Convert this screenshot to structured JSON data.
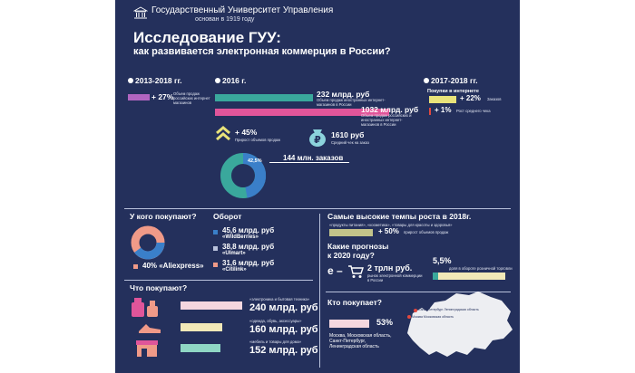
{
  "colors": {
    "bg": "#24305c",
    "pink": "#e0559a",
    "violet": "#b165c0",
    "teal": "#3aa89c",
    "yellow": "#e9e37a",
    "blue": "#3a7fc9",
    "red": "#e2483e",
    "salmon": "#f09a88",
    "olive": "#c2c38a",
    "lightpink": "#f5d7df",
    "lightyellow": "#f1e8b8",
    "aqua": "#8cd3dc",
    "mint": "#8fd6c4"
  },
  "header": {
    "logo_icon": "building-icon",
    "university": "Государственный Университет Управления",
    "founded": "основан в 1919 году"
  },
  "title": {
    "main": "Исследование ГУУ:",
    "sub": "как развивается электронная коммерция в России?"
  },
  "s2013": {
    "heading": "2013-2018 гг.",
    "value": "+ 27%",
    "desc": "Объем продаж российских интернет магазинов"
  },
  "s2016": {
    "heading": "2016 г.",
    "v1": "232 млрд. руб",
    "d1": "Объем продаж иностранных интернет-магазинов в России",
    "v2": "1032 млрд. руб",
    "d2": "Объем продаж российских и иностранных интернет-магазинов в России",
    "growth": "+ 45%",
    "growth_desc": "Прирост объемов продаж",
    "check": "1610 руб",
    "check_desc": "Средний чек на заказ",
    "donut_label": "42,5%",
    "orders": "144 млн. заказов"
  },
  "s2017": {
    "heading": "2017-2018 гг.",
    "sub": "Покупки в интернете",
    "v1": "+ 22%",
    "d1": "Заказов",
    "v2": "+ 1%",
    "d2": "Рост среднего чека"
  },
  "whom": {
    "heading": "У кого покупают?",
    "share": "40% «Aliexpress»",
    "turnover": "Оборот",
    "items": [
      {
        "value": "45,6 млрд. руб",
        "name": "«WildBerries»"
      },
      {
        "value": "38,8 млрд. руб",
        "name": "«Ulmart»"
      },
      {
        "value": "31,6 млрд. руб",
        "name": "«Citilink»"
      }
    ]
  },
  "growth2018": {
    "heading": "Самые высокие темпы роста в 2018г.",
    "cats": "«продукты питания», «косметика», «товары для красоты и здоровья»",
    "value": "+ 50%",
    "desc": "прирост объемов продаж"
  },
  "forecast": {
    "heading1": "Какие прогнозы",
    "heading2": "к 2020 году?",
    "ecom": "е –",
    "value": "2 трлн руб.",
    "desc": "рынок электронной коммерции в России",
    "pct": "5,5%",
    "pct_desc": "доля в обороте розничной торговли"
  },
  "what": {
    "heading": "Что покупают?",
    "items": [
      {
        "label": "«электроника и бытовая техника»",
        "value": "240 млрд. руб"
      },
      {
        "label": "«одежда, обувь, аксессуары»",
        "value": "160 млрд. руб"
      },
      {
        "label": "«мебель и товары для дома»",
        "value": "152 млрд. руб"
      }
    ]
  },
  "who": {
    "heading": "Кто покупает?",
    "value": "53%",
    "desc": "Москва, Московская область, Санкт-Петербург, Ленинградская область",
    "pin1": "Санкт-Петербург Ленинградская область",
    "pin2": "Москва Московская область"
  }
}
